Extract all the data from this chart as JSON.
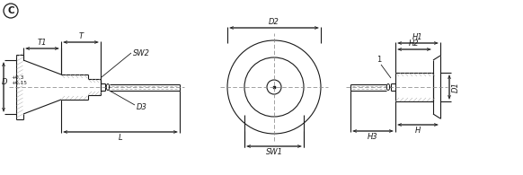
{
  "bg_color": "#ffffff",
  "line_color": "#1a1a1a",
  "center_color": "#888888",
  "fig_width": 5.82,
  "fig_height": 1.95,
  "dpi": 100,
  "labels": {
    "C": "C",
    "T": "T",
    "T1": "T1",
    "SW2": "SW2",
    "D_label": "D",
    "D_sup": "+0.3",
    "D_sub": "+0.15",
    "D3": "D3",
    "L": "L",
    "D2": "D2",
    "SW1": "SW1",
    "H1": "H1",
    "H2": "H2",
    "D1": "D1",
    "H3": "H3",
    "H": "H",
    "num1": "1"
  }
}
